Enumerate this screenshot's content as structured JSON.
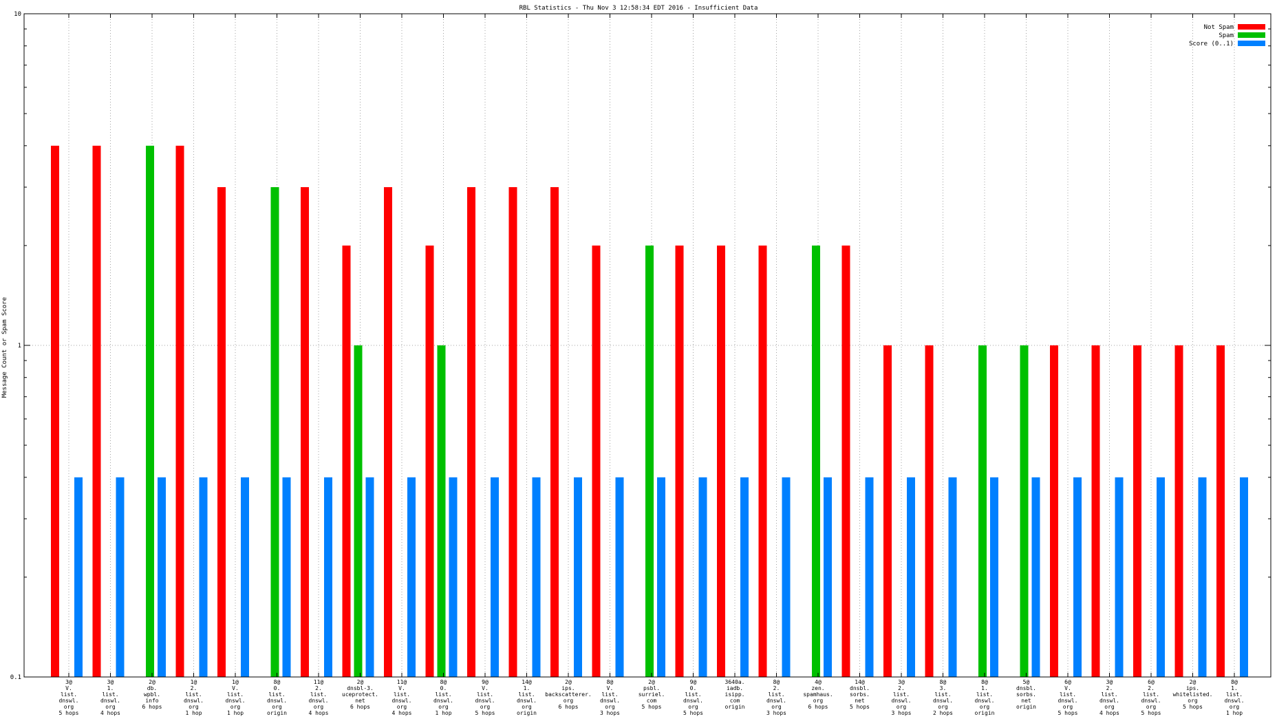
{
  "chart_data": {
    "type": "bar",
    "title": "RBL Statistics - Thu Nov  3 12:58:34 EDT 2016 - Insufficient Data",
    "ylabel": "Message Count or Spam Score",
    "xlabel": "",
    "yscale": "log",
    "ylim": [
      0.1,
      10
    ],
    "yticks": [
      "0.1",
      "1",
      "10"
    ],
    "grid": true,
    "legend_position": "top-right",
    "colors": {
      "Not Spam": "#ff0000",
      "Spam": "#00c000",
      "Score (0..1)": "#0080ff"
    },
    "categories": [
      [
        "3@",
        "V.",
        "list.",
        "dnswl.",
        "org",
        "5 hops"
      ],
      [
        "3@",
        "1.",
        "list.",
        "dnswl.",
        "org",
        "4 hops"
      ],
      [
        "2@",
        "db.",
        "wpbl.",
        "info",
        "6 hops"
      ],
      [
        "1@",
        "2.",
        "list.",
        "dnswl.",
        "org",
        "1 hop"
      ],
      [
        "1@",
        "V.",
        "list.",
        "dnswl.",
        "org",
        "1 hop"
      ],
      [
        "8@",
        "0.",
        "list.",
        "dnswl.",
        "org",
        "origin"
      ],
      [
        "11@",
        "2.",
        "list.",
        "dnswl.",
        "org",
        "4 hops"
      ],
      [
        "2@",
        "dnsbl-3.",
        "uceprotect.",
        "net",
        "6 hops"
      ],
      [
        "11@",
        "V.",
        "list.",
        "dnswl.",
        "org",
        "4 hops"
      ],
      [
        "8@",
        "0.",
        "list.",
        "dnswl.",
        "org",
        "1 hop"
      ],
      [
        "9@",
        "V.",
        "list.",
        "dnswl.",
        "org",
        "5 hops"
      ],
      [
        "14@",
        "1.",
        "list.",
        "dnswl.",
        "org",
        "origin"
      ],
      [
        "2@",
        "ips.",
        "backscatterer.",
        "org",
        "6 hops"
      ],
      [
        "8@",
        "V.",
        "list.",
        "dnswl.",
        "org",
        "3 hops"
      ],
      [
        "2@",
        "psbl.",
        "surriel.",
        "com",
        "5 hops"
      ],
      [
        "9@",
        "0.",
        "list.",
        "dnswl.",
        "org",
        "5 hops"
      ],
      [
        "3640a.",
        "iadb.",
        "isipp.",
        "com",
        "origin"
      ],
      [
        "8@",
        "2.",
        "list.",
        "dnswl.",
        "org",
        "3 hops"
      ],
      [
        "4@",
        "zen.",
        "spamhaus.",
        "org",
        "6 hops"
      ],
      [
        "14@",
        "dnsbl.",
        "sorbs.",
        "net",
        "5 hops"
      ],
      [
        "3@",
        "2.",
        "list.",
        "dnswl.",
        "org",
        "3 hops"
      ],
      [
        "8@",
        "3.",
        "list.",
        "dnswl.",
        "org",
        "2 hops"
      ],
      [
        "8@",
        "1.",
        "list.",
        "dnswl.",
        "org",
        "origin"
      ],
      [
        "5@",
        "dnsbl.",
        "sorbs.",
        "net",
        "origin"
      ],
      [
        "6@",
        "V.",
        "list.",
        "dnswl.",
        "org",
        "5 hops"
      ],
      [
        "3@",
        "2.",
        "list.",
        "dnswl.",
        "org",
        "4 hops"
      ],
      [
        "6@",
        "2.",
        "list.",
        "dnswl.",
        "org",
        "5 hops"
      ],
      [
        "2@",
        "ips.",
        "whitelisted.",
        "org",
        "5 hops"
      ],
      [
        "8@",
        "1.",
        "list.",
        "dnswl.",
        "org",
        "1 hop"
      ]
    ],
    "series": [
      {
        "name": "Not Spam",
        "values": [
          4,
          4,
          0,
          4,
          3,
          0,
          3,
          2,
          3,
          2,
          3,
          3,
          3,
          2,
          0,
          2,
          2,
          2,
          0,
          2,
          1,
          1,
          0,
          0,
          1,
          1,
          1,
          1,
          1
        ]
      },
      {
        "name": "Spam",
        "values": [
          0,
          0,
          4,
          0,
          0,
          3,
          0,
          1,
          0,
          1,
          0,
          0,
          0,
          0,
          2,
          0,
          0,
          0,
          2,
          0,
          0,
          0,
          1,
          1,
          0,
          0,
          0,
          0,
          0
        ]
      },
      {
        "name": "Score (0..1)",
        "values": [
          0.4,
          0.4,
          0.4,
          0.4,
          0.4,
          0.4,
          0.4,
          0.4,
          0.4,
          0.4,
          0.4,
          0.4,
          0.4,
          0.4,
          0.4,
          0.4,
          0.4,
          0.4,
          0.4,
          0.4,
          0.4,
          0.4,
          0.4,
          0.4,
          0.4,
          0.4,
          0.4,
          0.4,
          0.4
        ]
      }
    ]
  }
}
